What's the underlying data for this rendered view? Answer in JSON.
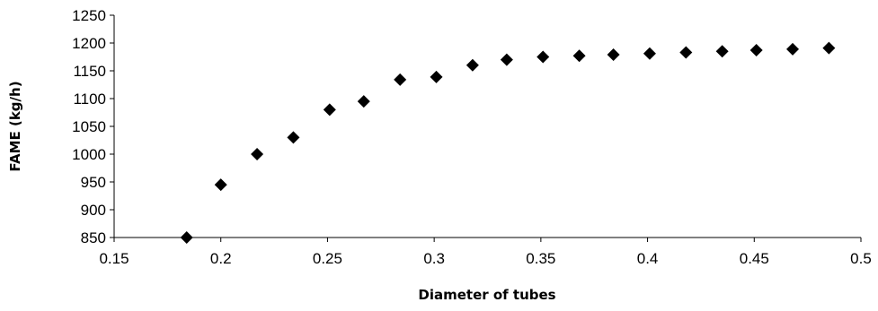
{
  "chart_data": {
    "type": "scatter",
    "xlabel": "Diameter of tubes",
    "ylabel": "FAME (kg/h)",
    "xlim": [
      0.15,
      0.5
    ],
    "ylim": [
      850,
      1250
    ],
    "x_ticks": [
      "0.15",
      "0.2",
      "0.25",
      "0.3",
      "0.35",
      "0.4",
      "0.45",
      "0.5"
    ],
    "y_ticks": [
      "850",
      "900",
      "950",
      "1000",
      "1050",
      "1100",
      "1150",
      "1200",
      "1250"
    ],
    "grid": false,
    "legend": "none",
    "marker": "diamond",
    "marker_color": "#000000",
    "points": [
      {
        "x": 0.184,
        "y": 850
      },
      {
        "x": 0.2,
        "y": 945
      },
      {
        "x": 0.217,
        "y": 1000
      },
      {
        "x": 0.234,
        "y": 1030
      },
      {
        "x": 0.251,
        "y": 1080
      },
      {
        "x": 0.267,
        "y": 1095
      },
      {
        "x": 0.284,
        "y": 1134
      },
      {
        "x": 0.301,
        "y": 1139
      },
      {
        "x": 0.318,
        "y": 1160
      },
      {
        "x": 0.334,
        "y": 1170
      },
      {
        "x": 0.351,
        "y": 1175
      },
      {
        "x": 0.368,
        "y": 1177
      },
      {
        "x": 0.384,
        "y": 1179
      },
      {
        "x": 0.401,
        "y": 1181
      },
      {
        "x": 0.418,
        "y": 1183
      },
      {
        "x": 0.435,
        "y": 1185
      },
      {
        "x": 0.451,
        "y": 1187
      },
      {
        "x": 0.468,
        "y": 1189
      },
      {
        "x": 0.485,
        "y": 1191
      }
    ]
  }
}
